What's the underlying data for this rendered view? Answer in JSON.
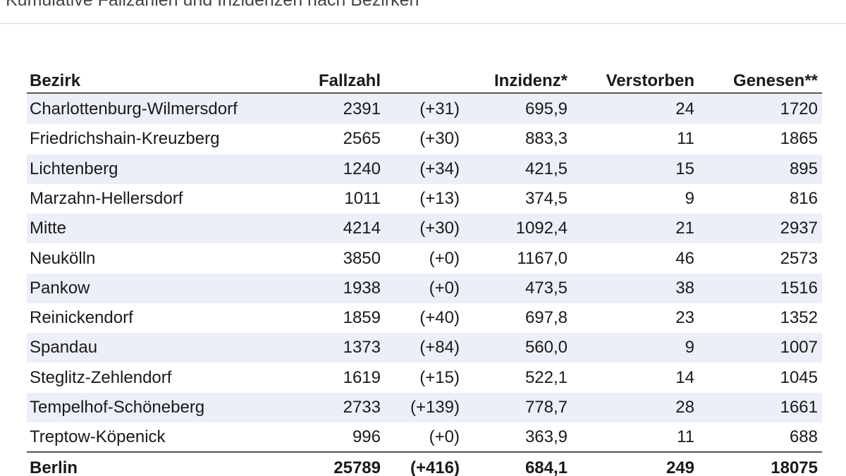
{
  "header": {
    "title": "Kumulative Fallzahlen und Inzidenzen nach Bezirken"
  },
  "table": {
    "columns": [
      "Bezirk",
      "Fallzahl",
      "Inzidenz*",
      "Verstorben",
      "Genesen**"
    ],
    "rows": [
      [
        "Charlottenburg-Wilmersdorf",
        "2391",
        "(+31)",
        "695,9",
        "24",
        "1720"
      ],
      [
        "Friedrichshain-Kreuzberg",
        "2565",
        "(+30)",
        "883,3",
        "11",
        "1865"
      ],
      [
        "Lichtenberg",
        "1240",
        "(+34)",
        "421,5",
        "15",
        "895"
      ],
      [
        "Marzahn-Hellersdorf",
        "1011",
        "(+13)",
        "374,5",
        "9",
        "816"
      ],
      [
        "Mitte",
        "4214",
        "(+30)",
        "1092,4",
        "21",
        "2937"
      ],
      [
        "Neukölln",
        "3850",
        "(+0)",
        "1167,0",
        "46",
        "2573"
      ],
      [
        "Pankow",
        "1938",
        "(+0)",
        "473,5",
        "38",
        "1516"
      ],
      [
        "Reinickendorf",
        "1859",
        "(+40)",
        "697,8",
        "23",
        "1352"
      ],
      [
        "Spandau",
        "1373",
        "(+84)",
        "560,0",
        "9",
        "1007"
      ],
      [
        "Steglitz-Zehlendorf",
        "1619",
        "(+15)",
        "522,1",
        "14",
        "1045"
      ],
      [
        "Tempelhof-Schöneberg",
        "2733",
        "(+139)",
        "778,7",
        "28",
        "1661"
      ],
      [
        "Treptow-Köpenick",
        "996",
        "(+0)",
        "363,9",
        "11",
        "688"
      ]
    ],
    "total": [
      "Berlin",
      "25789",
      "(+416)",
      "684,1",
      "249",
      "18075"
    ]
  }
}
